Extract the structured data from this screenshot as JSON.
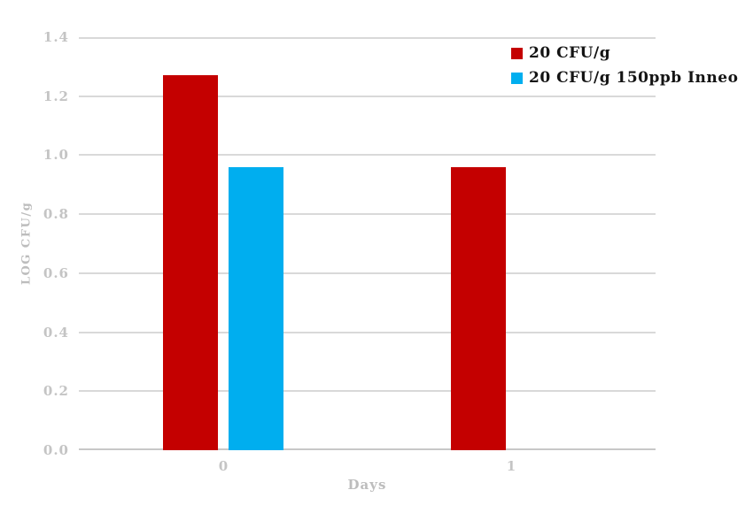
{
  "chart_data": {
    "type": "bar",
    "title": "",
    "xlabel": "Days",
    "ylabel": "LOG CFU/g",
    "categories": [
      "0",
      "1"
    ],
    "series": [
      {
        "name": "20 CFU/g",
        "color": "#c40000",
        "values": [
          1.27,
          0.96
        ]
      },
      {
        "name": "20 CFU/g 150ppb Inneo",
        "color": "#00aeef",
        "values": [
          0.96,
          null
        ]
      }
    ],
    "ylim": [
      0,
      1.4
    ],
    "yticks": [
      "0.0",
      "0.2",
      "0.4",
      "0.6",
      "0.8",
      "1.0",
      "1.2",
      "1.4"
    ],
    "grid": true,
    "legend_position": "top-right"
  },
  "colors": {
    "background": "#ffffff",
    "gridline": "#d9d9d9",
    "axis_line": "#c8c8c8",
    "tick_label": "#c4c4c4",
    "axis_title": "#bdbdbd",
    "legend_text": "#141414"
  }
}
